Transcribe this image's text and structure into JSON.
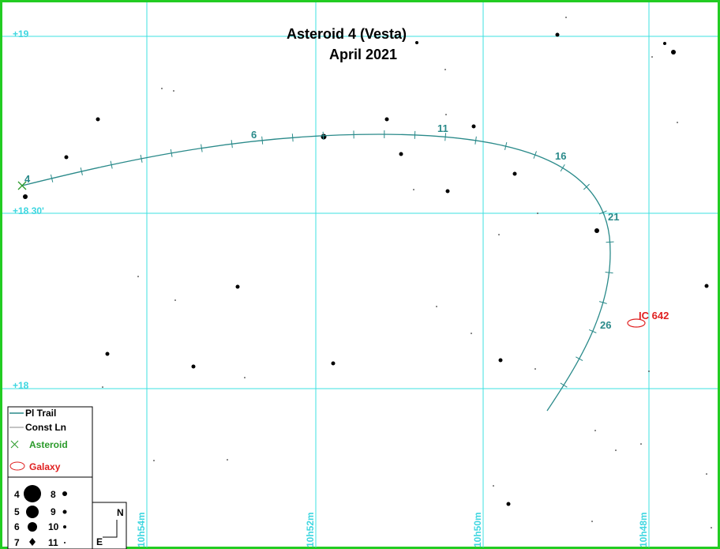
{
  "title": [
    "Asteroid 4 (Vesta)",
    "April 2021"
  ],
  "dec_labels": [
    "+19",
    "+18 30'",
    "+18"
  ],
  "ra_labels": [
    "10h54m",
    "10h52m",
    "10h50m",
    "10h48m"
  ],
  "trail_labels": [
    "4",
    "6",
    "11",
    "16",
    "21",
    "26"
  ],
  "object_label": "IC 642",
  "legend": {
    "items": [
      "Pl Trail",
      "Const Ln",
      "Asteroid",
      "Galaxy"
    ],
    "magnitudes": [
      "4",
      "5",
      "6",
      "7",
      "8",
      "9",
      "10",
      "11"
    ]
  },
  "compass": [
    "N",
    "E"
  ]
}
